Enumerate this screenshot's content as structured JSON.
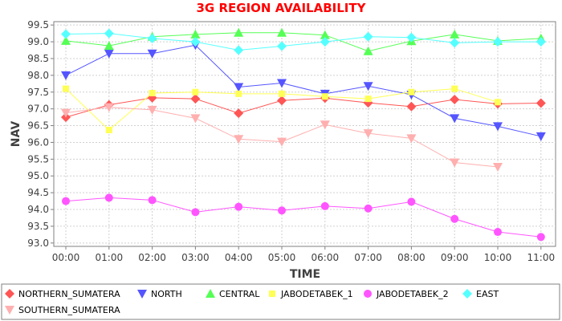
{
  "chart_data": {
    "type": "line",
    "title": "3G REGION AVAILABILITY",
    "xlabel": "TIME",
    "ylabel": "NAV",
    "categories": [
      "00:00",
      "01:00",
      "02:00",
      "03:00",
      "04:00",
      "05:00",
      "06:00",
      "07:00",
      "08:00",
      "09:00",
      "10:00",
      "11:00"
    ],
    "ylim": [
      92.9,
      99.6
    ],
    "yticks": [
      "93.0",
      "93.5",
      "94.0",
      "94.5",
      "95.0",
      "95.5",
      "96.0",
      "96.5",
      "97.0",
      "97.5",
      "98.0",
      "98.5",
      "99.0",
      "99.5"
    ],
    "grid": true,
    "legend_position": "bottom",
    "series": [
      {
        "name": "NORTHERN_SUMATERA",
        "color": "#ff5555",
        "marker": "diamond",
        "values": [
          96.75,
          97.12,
          97.33,
          97.3,
          96.87,
          97.25,
          97.32,
          97.18,
          97.07,
          97.28,
          97.15,
          97.17
        ]
      },
      {
        "name": "NORTH",
        "color": "#5555ff",
        "marker": "triangle-down",
        "values": [
          98.0,
          98.65,
          98.65,
          98.9,
          97.65,
          97.77,
          97.45,
          97.68,
          97.42,
          96.72,
          96.48,
          96.18
        ]
      },
      {
        "name": "CENTRAL",
        "color": "#55ff55",
        "marker": "triangle-up",
        "values": [
          99.03,
          98.88,
          99.15,
          99.22,
          99.27,
          99.27,
          99.2,
          98.72,
          99.02,
          99.22,
          99.03,
          99.1
        ]
      },
      {
        "name": "JABODETABEK_1",
        "color": "#ffff55",
        "marker": "square",
        "values": [
          97.6,
          96.37,
          97.47,
          97.5,
          97.45,
          97.45,
          97.37,
          97.3,
          97.5,
          97.6,
          97.2,
          null
        ]
      },
      {
        "name": "JABODETABEK_2",
        "color": "#ff55ff",
        "marker": "circle",
        "values": [
          94.25,
          94.35,
          94.28,
          93.92,
          94.08,
          93.97,
          94.1,
          94.03,
          94.23,
          93.72,
          93.33,
          93.18
        ]
      },
      {
        "name": "EAST",
        "color": "#55ffff",
        "marker": "diamond",
        "values": [
          99.23,
          99.25,
          99.1,
          99.0,
          98.75,
          98.87,
          99.0,
          99.15,
          99.13,
          98.97,
          99.0,
          99.0
        ]
      },
      {
        "name": "SOUTHERN_SUMATERA",
        "color": "#ffafaf",
        "marker": "triangle-down",
        "values": [
          96.88,
          97.05,
          96.97,
          96.72,
          96.1,
          96.02,
          96.53,
          96.27,
          96.12,
          95.4,
          95.27,
          null
        ]
      }
    ]
  }
}
